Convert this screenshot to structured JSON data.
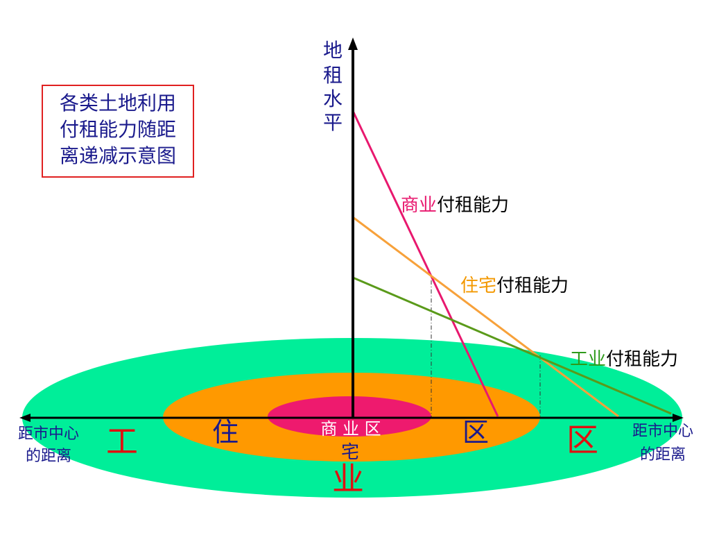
{
  "title": {
    "line1": "各类土地利用",
    "line2": "付租能力随距",
    "line3": "离递减示意图",
    "border_color": "#e02020",
    "text_color": "#1a1a8c"
  },
  "y_axis_label": [
    "地",
    "租",
    "水",
    "平"
  ],
  "x_axis_label_left": [
    "距市中心",
    "的距离"
  ],
  "x_axis_label_right": [
    "距市中心",
    "的距离"
  ],
  "curves": [
    {
      "name": "商业",
      "suffix": "付租能力",
      "color": "#e8186e",
      "label_color": "#e8186e"
    },
    {
      "name": "住宅",
      "suffix": "付租能力",
      "color": "#f7a13a",
      "label_color": "#f39800"
    },
    {
      "name": "工业",
      "suffix": "付租能力",
      "color": "#5a9a1a",
      "label_color": "#2e9a1a"
    }
  ],
  "zones": {
    "industrial_color": "#00ee99",
    "residential_color": "#ff9900",
    "commercial_color": "#ee1a6e",
    "commercial_label": "商 业 区",
    "residential_left": "住",
    "residential_mid": "宅",
    "residential_right": "区",
    "industrial_left": "工",
    "industrial_mid": "业",
    "industrial_right": "区"
  },
  "colors": {
    "axis": "#000000",
    "label_blue": "#1a1a8c",
    "zone_text_red": "#e01010",
    "zone_text_blue": "#1a1a8c",
    "zone_text_white": "#ffffff"
  }
}
